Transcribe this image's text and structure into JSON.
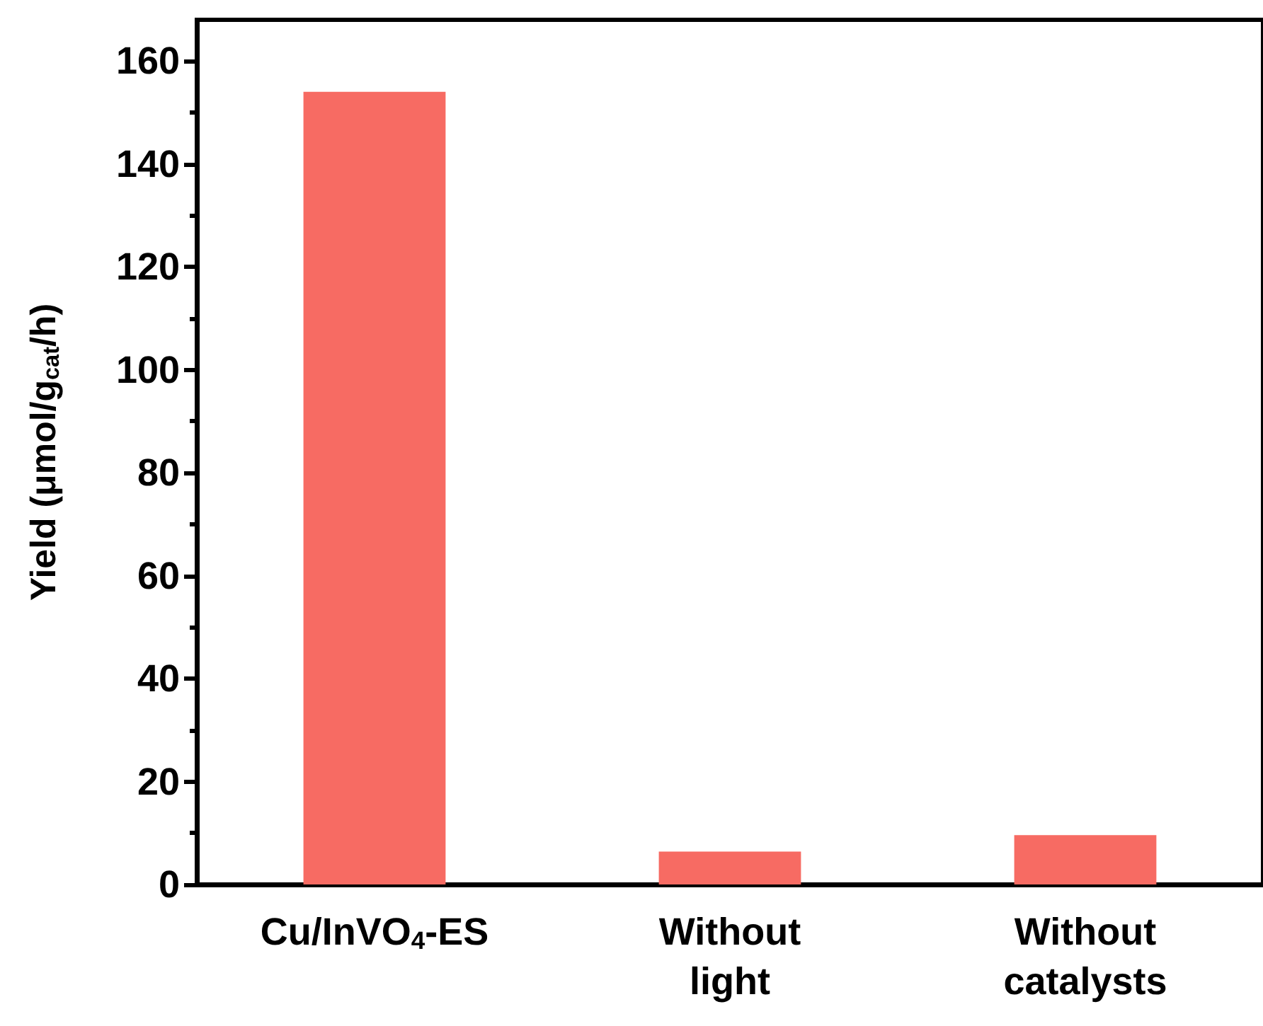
{
  "chart_data": {
    "type": "bar",
    "categories": [
      "Cu/InVO$_{4}$-ES",
      "Without\nlight",
      "Without\ncatalysts"
    ],
    "values": [
      154,
      6.4,
      9.6
    ],
    "color": "#f76b63",
    "ylabel": "Yield (μmol/g$_{cat}$/h)",
    "ylim": [
      0,
      168
    ],
    "yticks": [
      0,
      20,
      40,
      60,
      80,
      100,
      120,
      140,
      160
    ],
    "grid": false
  }
}
